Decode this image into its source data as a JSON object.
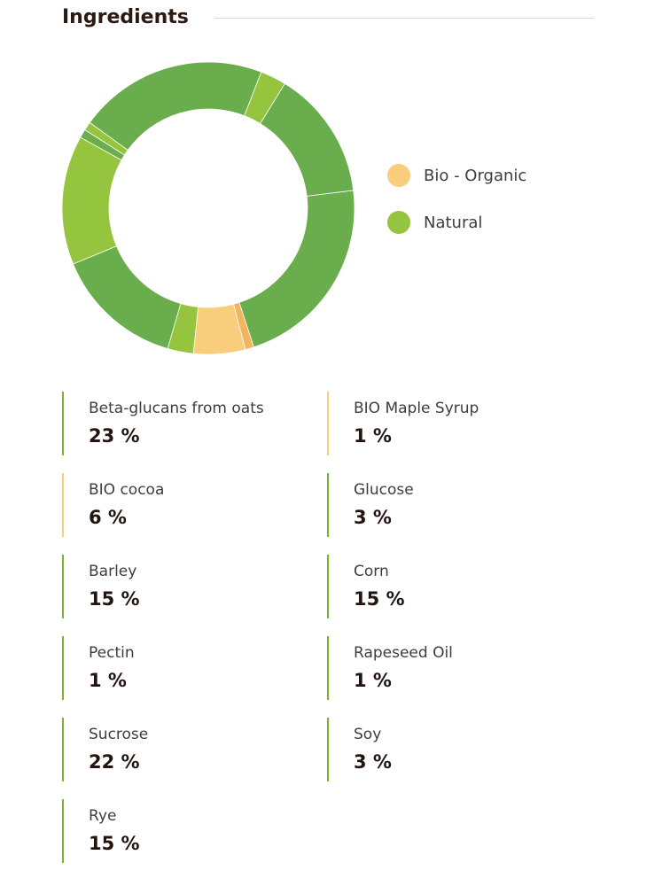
{
  "header": {
    "title": "Ingredients"
  },
  "colors": {
    "organic": "#f8cd7c",
    "organic_dark": "#f2b55e",
    "natural": "#6aad4c",
    "natural_light": "#95c43e",
    "natural_bar": "#7ab32e",
    "organic_bar": "#f8cd7c"
  },
  "legend": [
    {
      "label": "Bio - Organic",
      "category": "organic"
    },
    {
      "label": "Natural",
      "category": "natural"
    }
  ],
  "chart_data": {
    "type": "pie",
    "variant": "donut",
    "legend_position": "right",
    "slices": [
      {
        "name": "Beta-glucans from oats",
        "value": 23,
        "category": "natural",
        "color": "#6aad4c"
      },
      {
        "name": "BIO Maple Syrup",
        "value": 1,
        "category": "organic",
        "color": "#f2b55e"
      },
      {
        "name": "BIO cocoa",
        "value": 6,
        "category": "organic",
        "color": "#f8cd7c"
      },
      {
        "name": "Glucose",
        "value": 3,
        "category": "natural",
        "color": "#95c43e"
      },
      {
        "name": "Barley",
        "value": 15,
        "category": "natural",
        "color": "#6aad4c"
      },
      {
        "name": "Corn",
        "value": 15,
        "category": "natural",
        "color": "#95c43e"
      },
      {
        "name": "Pectin",
        "value": 1,
        "category": "natural",
        "color": "#6aad4c"
      },
      {
        "name": "Rapeseed Oil",
        "value": 1,
        "category": "natural",
        "color": "#95c43e"
      },
      {
        "name": "Sucrose",
        "value": 22,
        "category": "natural",
        "color": "#6aad4c"
      },
      {
        "name": "Soy",
        "value": 3,
        "category": "natural",
        "color": "#95c43e"
      },
      {
        "name": "Rye",
        "value": 15,
        "category": "natural",
        "color": "#6aad4c"
      }
    ]
  },
  "ingredients": [
    {
      "name": "Beta-glucans from oats",
      "percent": "23 %",
      "category": "natural"
    },
    {
      "name": "BIO Maple Syrup",
      "percent": "1 %",
      "category": "organic"
    },
    {
      "name": "BIO cocoa",
      "percent": "6 %",
      "category": "organic"
    },
    {
      "name": "Glucose",
      "percent": "3 %",
      "category": "natural"
    },
    {
      "name": "Barley",
      "percent": "15 %",
      "category": "natural"
    },
    {
      "name": "Corn",
      "percent": "15 %",
      "category": "natural"
    },
    {
      "name": "Pectin",
      "percent": "1 %",
      "category": "natural"
    },
    {
      "name": "Rapeseed Oil",
      "percent": "1 %",
      "category": "natural"
    },
    {
      "name": "Sucrose",
      "percent": "22 %",
      "category": "natural"
    },
    {
      "name": "Soy",
      "percent": "3 %",
      "category": "natural"
    },
    {
      "name": "Rye",
      "percent": "15 %",
      "category": "natural"
    }
  ]
}
